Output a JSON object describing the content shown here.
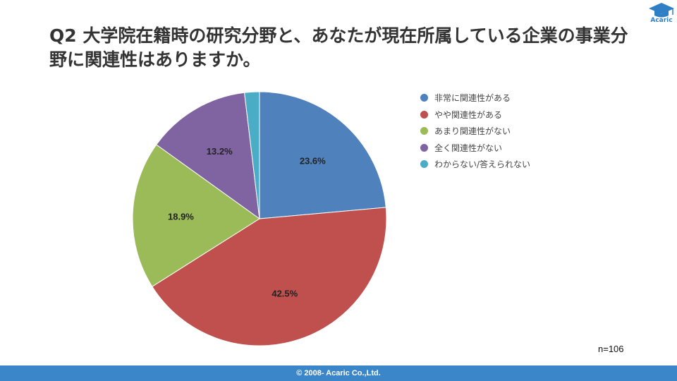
{
  "slide": {
    "title": "Q2 大学院在籍時の研究分野と、あなたが現在所属している企業の事業分野に関連性はありますか。",
    "logo_text": "Acaric",
    "logo_icon": "graduation-cap-icon",
    "sample_size": "n=106",
    "footer": "© 2008- Acaric Co.,Ltd."
  },
  "colors": {
    "footer_bar": "#3b86c8",
    "logo": "#2f7fc6"
  },
  "chart_data": {
    "type": "pie",
    "title": "",
    "legend_position": "right",
    "slices": [
      {
        "label": "非常に関連性がある",
        "value": 23.6,
        "display": "23.6%",
        "color": "#4f81bd"
      },
      {
        "label": "やや関連性がある",
        "value": 42.5,
        "display": "42.5%",
        "color": "#c0504d"
      },
      {
        "label": "あまり関連性がない",
        "value": 18.9,
        "display": "18.9%",
        "color": "#9bbb59"
      },
      {
        "label": "全く関連性がない",
        "value": 13.2,
        "display": "13.2%",
        "color": "#8064a2"
      },
      {
        "label": "わからない/答えられない",
        "value": 1.9,
        "display": "",
        "color": "#4bacc6"
      }
    ]
  }
}
